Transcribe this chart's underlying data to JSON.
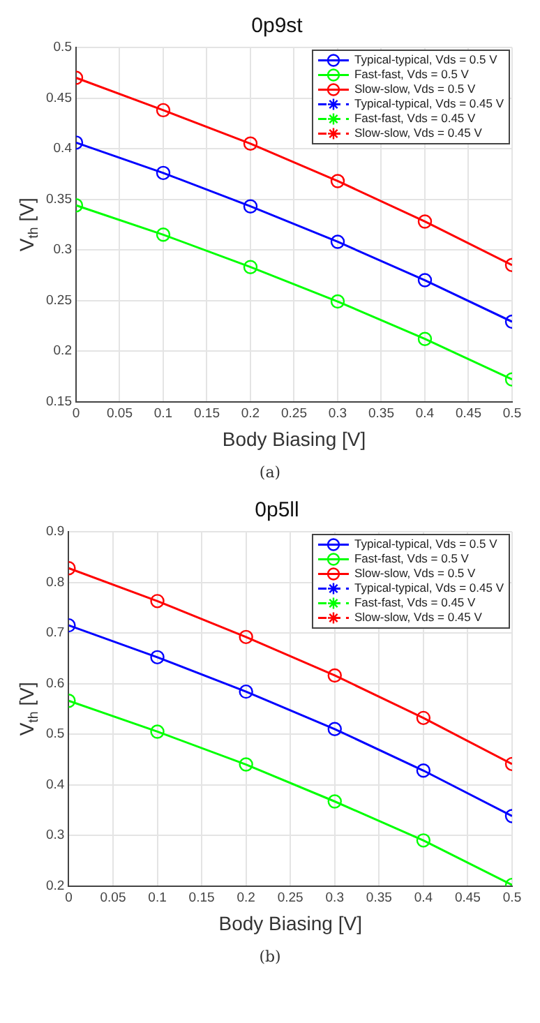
{
  "chart_data": [
    {
      "type": "line",
      "title": "0p9st",
      "xlabel": "Body Biasing [V]",
      "ylabel": "V$_{th}$ [V]",
      "x": [
        0,
        0.1,
        0.2,
        0.3,
        0.4,
        0.5
      ],
      "series": [
        {
          "name": "Typical-typical, Vds = 0.5 V",
          "color": "#0000ff",
          "marker": "circle",
          "line_style": "solid",
          "values": [
            0.406,
            0.376,
            0.343,
            0.308,
            0.27,
            0.229
          ]
        },
        {
          "name": "Fast-fast, Vds = 0.5 V",
          "color": "#00ff00",
          "marker": "circle",
          "line_style": "solid",
          "values": [
            0.344,
            0.315,
            0.283,
            0.249,
            0.212,
            0.172
          ]
        },
        {
          "name": "Slow-slow, Vds = 0.5 V",
          "color": "#ff0000",
          "marker": "circle",
          "line_style": "solid",
          "values": [
            0.47,
            0.438,
            0.405,
            0.368,
            0.328,
            0.285
          ]
        },
        {
          "name": "Typical-typical, Vds = 0.45 V",
          "color": "#0000ff",
          "marker": "star",
          "line_style": "dashed",
          "values": [
            null,
            null,
            null,
            null,
            null,
            null
          ]
        },
        {
          "name": "Fast-fast, Vds = 0.45 V",
          "color": "#00ff00",
          "marker": "star",
          "line_style": "dashed",
          "values": [
            null,
            null,
            null,
            null,
            null,
            null
          ]
        },
        {
          "name": "Slow-slow, Vds = 0.45 V",
          "color": "#ff0000",
          "marker": "star",
          "line_style": "dashed",
          "values": [
            null,
            null,
            null,
            null,
            null,
            null
          ]
        }
      ],
      "xlim": [
        0,
        0.5
      ],
      "xticks": [
        0,
        0.05,
        0.1,
        0.15,
        0.2,
        0.25,
        0.3,
        0.35,
        0.4,
        0.45,
        0.5
      ],
      "ylim": [
        0.15,
        0.5
      ],
      "yticks": [
        0.15,
        0.2,
        0.25,
        0.3,
        0.35,
        0.4,
        0.45,
        0.5
      ],
      "grid": true,
      "legend": "top right",
      "annotations": [
        "(a)"
      ]
    },
    {
      "type": "line",
      "title": "0p5ll",
      "xlabel": "Body Biasing [V]",
      "ylabel": "V$_{th}$ [V]",
      "x": [
        0,
        0.1,
        0.2,
        0.3,
        0.4,
        0.5
      ],
      "series": [
        {
          "name": "Typical-typical, Vds = 0.5 V",
          "color": "#0000ff",
          "marker": "circle",
          "line_style": "solid",
          "values": [
            0.715,
            0.652,
            0.584,
            0.51,
            0.428,
            0.338
          ]
        },
        {
          "name": "Fast-fast, Vds = 0.5 V",
          "color": "#00ff00",
          "marker": "circle",
          "line_style": "solid",
          "values": [
            0.566,
            0.505,
            0.44,
            0.367,
            0.29,
            0.202
          ]
        },
        {
          "name": "Slow-slow, Vds = 0.5 V",
          "color": "#ff0000",
          "marker": "circle",
          "line_style": "solid",
          "values": [
            0.828,
            0.763,
            0.692,
            0.616,
            0.532,
            0.441
          ]
        },
        {
          "name": "Typical-typical, Vds = 0.45 V",
          "color": "#0000ff",
          "marker": "star",
          "line_style": "dashed",
          "values": [
            null,
            null,
            null,
            null,
            null,
            null
          ]
        },
        {
          "name": "Fast-fast, Vds = 0.45 V",
          "color": "#00ff00",
          "marker": "star",
          "line_style": "dashed",
          "values": [
            null,
            null,
            null,
            null,
            null,
            null
          ]
        },
        {
          "name": "Slow-slow, Vds = 0.45 V",
          "color": "#ff0000",
          "marker": "star",
          "line_style": "dashed",
          "values": [
            null,
            null,
            null,
            null,
            null,
            null
          ]
        }
      ],
      "xlim": [
        0,
        0.5
      ],
      "xticks": [
        0,
        0.05,
        0.1,
        0.15,
        0.2,
        0.25,
        0.3,
        0.35,
        0.4,
        0.45,
        0.5
      ],
      "ylim": [
        0.2,
        0.9
      ],
      "yticks": [
        0.2,
        0.3,
        0.4,
        0.5,
        0.6,
        0.7,
        0.8,
        0.9
      ],
      "grid": true,
      "legend": "top right",
      "annotations": [
        "(b)"
      ]
    }
  ]
}
